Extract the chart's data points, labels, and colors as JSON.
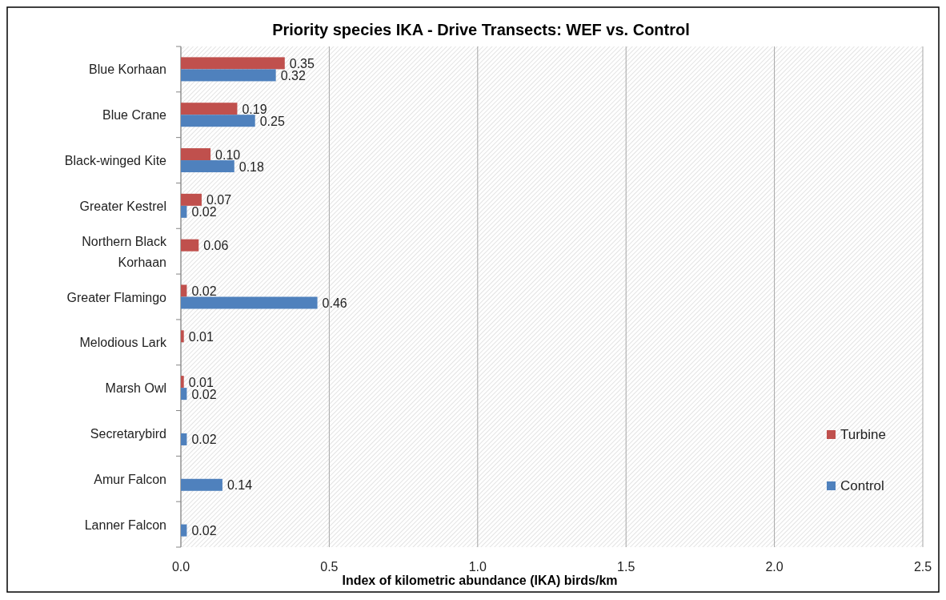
{
  "chart_data": {
    "type": "bar",
    "orientation": "horizontal",
    "title": "Priority species IKA - Drive Transects: WEF vs. Control",
    "xlabel": "Index of kilometric abundance (IKA) birds/km",
    "categories": [
      "Blue Korhaan",
      "Blue Crane",
      "Black-winged Kite",
      "Greater Kestrel",
      "Northern Black Korhaan",
      "Greater Flamingo",
      "Melodious Lark",
      "Marsh Owl",
      "Secretarybird",
      "Amur Falcon",
      "Lanner Falcon"
    ],
    "series": [
      {
        "name": "Turbine",
        "color": "#c0504d",
        "values": [
          0.35,
          0.19,
          0.1,
          0.07,
          0.06,
          0.02,
          0.01,
          0.01,
          null,
          null,
          null
        ],
        "value_labels": [
          "0.35",
          "0.19",
          "0.10",
          "0.07",
          "0.06",
          "0.02",
          "0.01",
          "0.01",
          null,
          null,
          null
        ]
      },
      {
        "name": "Control",
        "color": "#4f81bd",
        "values": [
          0.32,
          0.25,
          0.18,
          0.02,
          null,
          0.46,
          null,
          0.02,
          0.02,
          0.14,
          0.02
        ],
        "value_labels": [
          "0.32",
          "0.25",
          "0.18",
          "0.02",
          null,
          "0.46",
          null,
          "0.02",
          "0.02",
          "0.14",
          "0.02"
        ]
      }
    ],
    "xlim": [
      0,
      2.5
    ],
    "xticks": [
      {
        "value": 0,
        "label": "0.0"
      },
      {
        "value": 0.5,
        "label": "0.5"
      },
      {
        "value": 1,
        "label": "1.0"
      },
      {
        "value": 1.5,
        "label": "1.5"
      },
      {
        "value": 2,
        "label": "2.0"
      },
      {
        "value": 2.5,
        "label": "2.5"
      }
    ],
    "grid": "x",
    "legend": "right"
  }
}
